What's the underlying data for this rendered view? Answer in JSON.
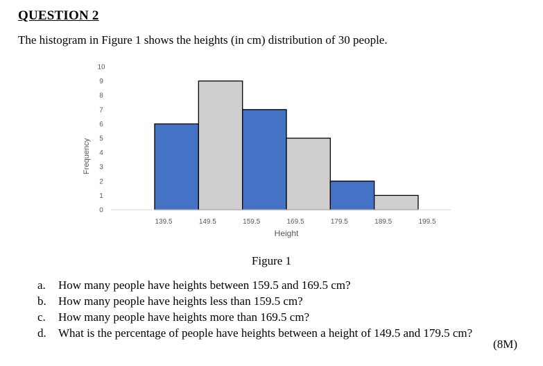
{
  "question": {
    "heading": "QUESTION 2",
    "intro": "The histogram in Figure 1 shows the heights (in cm) distribution of 30 people.",
    "figure_caption": "Figure 1",
    "items": [
      {
        "letter": "a.",
        "text": "How many people have heights between 159.5 and 169.5 cm?"
      },
      {
        "letter": "b.",
        "text": "How many people have heights less than 159.5 cm?"
      },
      {
        "letter": "c.",
        "text": "How many people have heights more than 169.5 cm?"
      },
      {
        "letter": "d.",
        "text": "What is the percentage of people have heights between a height of 149.5 and 179.5 cm?"
      }
    ],
    "marks": "(8M)"
  },
  "chart_data": {
    "type": "bar",
    "title": "",
    "xlabel": "Height",
    "ylabel": "Frequency",
    "ylim": [
      0,
      10
    ],
    "yticks": [
      0,
      1,
      2,
      3,
      4,
      5,
      6,
      7,
      8,
      9,
      10
    ],
    "xticks": [
      "139.5",
      "149.5",
      "159.5",
      "169.5",
      "179.5",
      "189.5",
      "199.5"
    ],
    "bin_edges": [
      139.5,
      149.5,
      159.5,
      169.5,
      179.5,
      189.5,
      199.5
    ],
    "values": [
      6,
      9,
      7,
      5,
      2,
      1
    ],
    "colors": [
      "#4472C4",
      "#D0CECE",
      "#4472C4",
      "#D0CECE",
      "#4472C4",
      "#D0CECE"
    ],
    "grid": false,
    "legend": "none"
  }
}
